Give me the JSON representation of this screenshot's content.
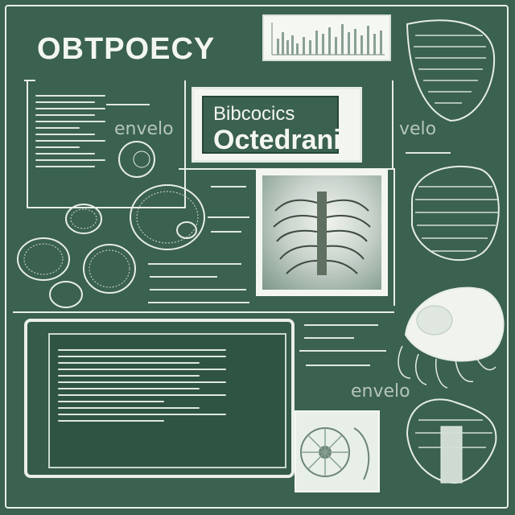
{
  "header": {
    "title": "OBTPOECY"
  },
  "center_box": {
    "line1": "Bibcocics",
    "line2": "Octedranil"
  },
  "watermarks": {
    "top_left": "envelo",
    "right": "velo",
    "bottom_right": "envelo"
  },
  "colors": {
    "board": "#3b6150",
    "chalk": "#e9efe9",
    "paper": "#f3f6ef"
  }
}
